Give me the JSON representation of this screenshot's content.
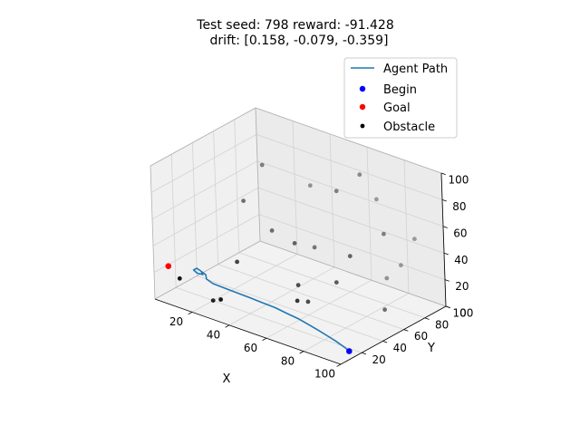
{
  "title_line1": "Test seed: 798 reward: -91.428",
  "title_line2": "drift: [0.158, -0.079, -0.359]",
  "chart_data": {
    "type": "scatter",
    "projection": "3d",
    "xlabel": "X",
    "ylabel": "Y",
    "zlabel": "",
    "xlim": [
      0,
      100
    ],
    "ylim": [
      0,
      100
    ],
    "zlim": [
      0,
      100
    ],
    "x_ticks": [
      20,
      40,
      60,
      80,
      100
    ],
    "y_ticks": [
      20,
      40,
      60,
      80,
      100
    ],
    "z_ticks": [
      0,
      20,
      40,
      60,
      80,
      100
    ],
    "grid": true,
    "legend_position": "top-right",
    "legend": [
      "Agent Path",
      "Begin",
      "Goal",
      "Obstacle"
    ],
    "colors": {
      "agent_path": "#1f77b4",
      "begin": "#0000ff",
      "goal": "#ff0000",
      "obstacle": "#000000",
      "pane": "#f2f2f2",
      "grid": "#d2d2d2"
    },
    "begin": {
      "x": 99,
      "y": 10,
      "z": 5
    },
    "goal": {
      "x": 5,
      "y": 5,
      "z": 25
    },
    "agent_path": [
      [
        99,
        10,
        5
      ],
      [
        96,
        11,
        6
      ],
      [
        90,
        13,
        7
      ],
      [
        85,
        14,
        8
      ],
      [
        80,
        15,
        9
      ],
      [
        74,
        16,
        10
      ],
      [
        68,
        17,
        11
      ],
      [
        62,
        17,
        12
      ],
      [
        56,
        16,
        14
      ],
      [
        50,
        15,
        15
      ],
      [
        44,
        13,
        17
      ],
      [
        38,
        12,
        18
      ],
      [
        32,
        11,
        19
      ],
      [
        26,
        10,
        20
      ],
      [
        22,
        11,
        21
      ],
      [
        20,
        14,
        22
      ],
      [
        16,
        16,
        22
      ],
      [
        14,
        16,
        23
      ],
      [
        14,
        13,
        23
      ],
      [
        17,
        11,
        23
      ],
      [
        19,
        13,
        22
      ],
      [
        17,
        15,
        22
      ]
    ],
    "obstacles": [
      [
        8,
        10,
        15
      ],
      [
        30,
        60,
        40
      ],
      [
        50,
        65,
        35
      ],
      [
        15,
        60,
        55
      ],
      [
        60,
        70,
        80
      ],
      [
        55,
        40,
        20
      ],
      [
        70,
        75,
        95
      ],
      [
        20,
        70,
        80
      ],
      [
        25,
        35,
        25
      ],
      [
        80,
        80,
        20
      ],
      [
        90,
        90,
        50
      ],
      [
        70,
        90,
        70
      ],
      [
        30,
        10,
        10
      ],
      [
        60,
        40,
        10
      ],
      [
        90,
        60,
        10
      ],
      [
        70,
        50,
        25
      ],
      [
        60,
        30,
        15
      ],
      [
        85,
        85,
        30
      ],
      [
        20,
        20,
        0
      ],
      [
        40,
        80,
        70
      ],
      [
        75,
        55,
        45
      ],
      [
        45,
        55,
        40
      ],
      [
        85,
        70,
        60
      ]
    ]
  }
}
